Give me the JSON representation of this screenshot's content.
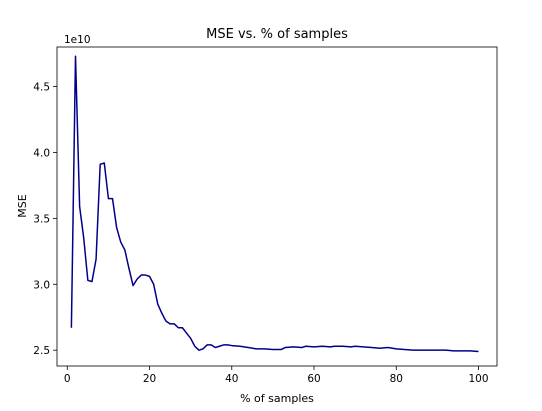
{
  "chart_data": {
    "type": "line",
    "title": "MSE vs. % of samples",
    "xlabel": "% of samples",
    "ylabel": "MSE",
    "y_offset_label": "1e10",
    "xlim": [
      -2.5,
      104.5
    ],
    "ylim": [
      2.38,
      4.8
    ],
    "x_ticks": [
      0,
      20,
      40,
      60,
      80,
      100
    ],
    "x_tick_labels": [
      "0",
      "20",
      "40",
      "60",
      "80",
      "100"
    ],
    "y_ticks": [
      2.5,
      3.0,
      3.5,
      4.0,
      4.5
    ],
    "y_tick_labels": [
      "2.5",
      "3.0",
      "3.5",
      "4.0",
      "4.5"
    ],
    "grid": false,
    "series": [
      {
        "color": "#00008b",
        "x": [
          1,
          2,
          3,
          4,
          5,
          6,
          7,
          8,
          9,
          10,
          11,
          12,
          13,
          14,
          15,
          16,
          17,
          18,
          19,
          20,
          21,
          22,
          23,
          24,
          25,
          26,
          27,
          28,
          29,
          30,
          31,
          32,
          33,
          34,
          35,
          36,
          37,
          38,
          39,
          40,
          42,
          44,
          46,
          48,
          50,
          52,
          53,
          55,
          57,
          58,
          60,
          62,
          64,
          65,
          67,
          69,
          70,
          72,
          74,
          76,
          78,
          80,
          82,
          84,
          86,
          88,
          90,
          92,
          94,
          96,
          98,
          100
        ],
        "y": [
          2.67,
          4.73,
          3.59,
          3.35,
          3.03,
          3.02,
          3.19,
          3.91,
          3.92,
          3.65,
          3.65,
          3.43,
          3.32,
          3.26,
          3.12,
          2.99,
          3.04,
          3.07,
          3.07,
          3.06,
          3.0,
          2.85,
          2.78,
          2.72,
          2.7,
          2.7,
          2.67,
          2.67,
          2.63,
          2.59,
          2.53,
          2.5,
          2.51,
          2.54,
          2.54,
          2.52,
          2.53,
          2.54,
          2.54,
          2.535,
          2.53,
          2.52,
          2.51,
          2.51,
          2.505,
          2.505,
          2.52,
          2.525,
          2.52,
          2.53,
          2.525,
          2.53,
          2.525,
          2.53,
          2.53,
          2.525,
          2.53,
          2.525,
          2.52,
          2.515,
          2.52,
          2.51,
          2.505,
          2.5,
          2.5,
          2.5,
          2.5,
          2.5,
          2.495,
          2.495,
          2.495,
          2.49
        ]
      }
    ]
  }
}
